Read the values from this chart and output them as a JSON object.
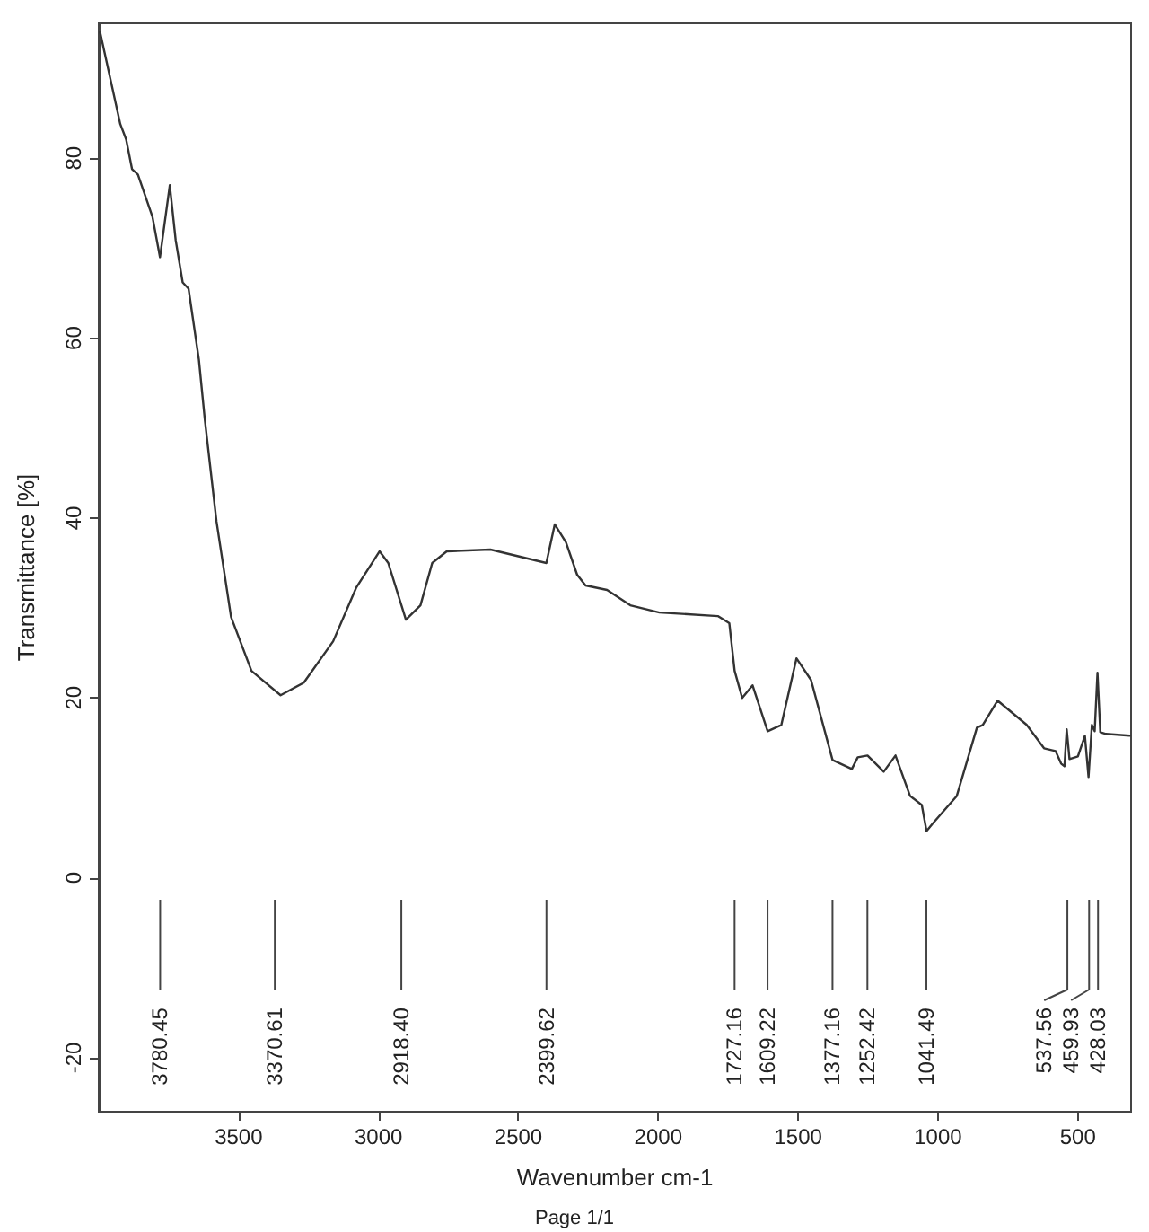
{
  "chart_data": {
    "type": "line",
    "xlabel": "Wavenumber cm-1",
    "ylabel": "Transmittance [%]",
    "xlim": [
      4000,
      310
    ],
    "ylim": [
      -26,
      95
    ],
    "xticks": [
      3500,
      3000,
      2500,
      2000,
      1500,
      1000,
      500
    ],
    "yticks": [
      -20,
      0,
      20,
      40,
      60,
      80
    ],
    "grid": false,
    "marker": "none",
    "line_style": "solid",
    "series": [
      {
        "color": "#333333",
        "x": [
          3995,
          3923,
          3902,
          3881,
          3860,
          3808,
          3781,
          3746,
          3725,
          3700,
          3679,
          3642,
          3621,
          3579,
          3527,
          3454,
          3350,
          3267,
          3162,
          3079,
          2996,
          2965,
          2902,
          2850,
          2808,
          2756,
          2600,
          2400,
          2370,
          2330,
          2290,
          2260,
          2183,
          2100,
          1996,
          1787,
          1746,
          1727,
          1700,
          1663,
          1609,
          1560,
          1506,
          1454,
          1377,
          1308,
          1287,
          1252,
          1194,
          1152,
          1100,
          1058,
          1041,
          1020,
          933,
          861,
          840,
          787,
          683,
          621,
          580,
          560,
          548,
          540,
          530,
          500,
          475,
          462,
          450,
          440,
          430,
          420,
          400,
          315
        ],
        "values": [
          94,
          83.8,
          82.1,
          78.8,
          78.2,
          73.5,
          69.0,
          77.0,
          70.9,
          66.2,
          65.5,
          57.6,
          51,
          39.6,
          29,
          23,
          20.3,
          21.7,
          26.3,
          32.3,
          36.3,
          35,
          28.7,
          30.3,
          35,
          36.3,
          36.5,
          35,
          39.3,
          37.3,
          33.7,
          32.5,
          32,
          30.3,
          29.5,
          29.1,
          28.3,
          23,
          20,
          21.4,
          16.3,
          17,
          24.4,
          22,
          13.1,
          12.1,
          13.4,
          13.6,
          11.8,
          13.6,
          9.1,
          8.1,
          5.2,
          6,
          9.1,
          16.7,
          17,
          19.7,
          17,
          14.4,
          14.1,
          12.7,
          12.4,
          16.5,
          13.2,
          13.5,
          15.8,
          11.2,
          17.0,
          16.3,
          22.8,
          16.2,
          16,
          15.8
        ]
      }
    ],
    "ref_lines": [
      {
        "axis": "x",
        "value": 3780.45,
        "label": "3780.45"
      },
      {
        "axis": "x",
        "value": 3370.61,
        "label": "3370.61"
      },
      {
        "axis": "x",
        "value": 2918.4,
        "label": "2918.40"
      },
      {
        "axis": "x",
        "value": 2399.62,
        "label": "2399.62"
      },
      {
        "axis": "x",
        "value": 1727.16,
        "label": "1727.16"
      },
      {
        "axis": "x",
        "value": 1609.22,
        "label": "1609.22"
      },
      {
        "axis": "x",
        "value": 1377.16,
        "label": "1377.16"
      },
      {
        "axis": "x",
        "value": 1252.42,
        "label": "1252.42"
      },
      {
        "axis": "x",
        "value": 1041.49,
        "label": "1041.49"
      },
      {
        "axis": "x",
        "value": 537.56,
        "label": "537.56"
      },
      {
        "axis": "x",
        "value": 459.93,
        "label": "459.93"
      },
      {
        "axis": "x",
        "value": 428.03,
        "label": "428.03"
      }
    ],
    "annotations": [
      "Page 1/1"
    ]
  }
}
